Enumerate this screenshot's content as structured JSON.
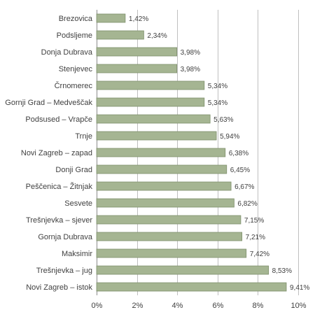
{
  "chart_data": {
    "type": "bar",
    "orientation": "horizontal",
    "title": "",
    "xlabel": "",
    "ylabel": "",
    "categories": [
      "Brezovica",
      "Podsljeme",
      "Donja Dubrava",
      "Stenjevec",
      "Črnomerec",
      "Gornji Grad – Medveščak",
      "Podsused – Vrapče",
      "Trnje",
      "Novi Zagreb – zapad",
      "Donji Grad",
      "Peščenica – Žitnjak",
      "Sesvete",
      "Trešnjevka – sjever",
      "Gornja Dubrava",
      "Maksimir",
      "Trešnjevka – jug",
      "Novi Zagreb – istok"
    ],
    "values": [
      1.42,
      2.34,
      3.98,
      3.98,
      5.34,
      5.34,
      5.63,
      5.94,
      6.38,
      6.45,
      6.67,
      6.82,
      7.15,
      7.21,
      7.42,
      8.53,
      9.41
    ],
    "value_labels": [
      "1,42%",
      "2,34%",
      "3,98%",
      "3,98%",
      "5,34%",
      "5,34%",
      "5,63%",
      "5,94%",
      "6,38%",
      "6,45%",
      "6,67%",
      "6,82%",
      "7,15%",
      "7,21%",
      "7,42%",
      "8,53%",
      "9,41%"
    ],
    "xlim": [
      0,
      10
    ],
    "xticks": [
      0,
      2,
      4,
      6,
      8,
      10
    ],
    "xtick_labels": [
      "0%",
      "2%",
      "4%",
      "6%",
      "8%",
      "10%"
    ],
    "grid": "vertical",
    "legend": "none",
    "colors": {
      "bar_fill": "#a5b592",
      "bar_stroke": "#7e8f6b",
      "grid": "#bfbfbf",
      "text": "#404040"
    }
  }
}
